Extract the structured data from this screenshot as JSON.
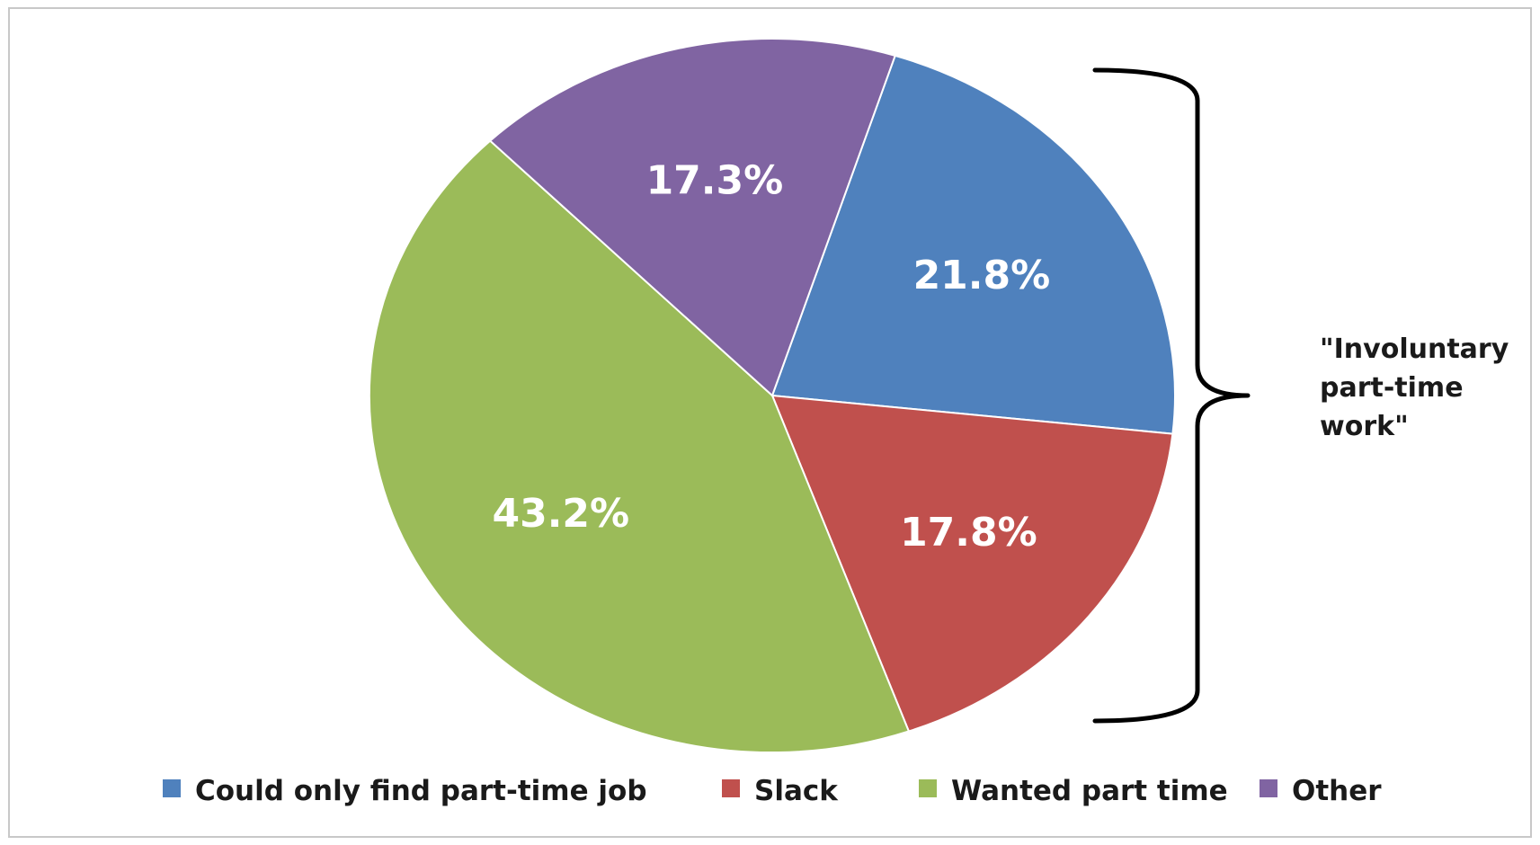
{
  "chart_data": {
    "type": "pie",
    "title": "",
    "slices": [
      {
        "name": "Could only find part-time job",
        "value": 21.8,
        "label": "21.8%",
        "color": "#4F81BD"
      },
      {
        "name": "Slack",
        "value": 17.8,
        "label": "17.8%",
        "color": "#C0504D"
      },
      {
        "name": "Wanted part time",
        "value": 43.2,
        "label": "43.2%",
        "color": "#9BBB59"
      },
      {
        "name": "Other",
        "value": 17.3,
        "label": "17.3%",
        "color": "#8064A2"
      }
    ],
    "legend": {
      "placement": "bottom",
      "entries": [
        "Could only find part-time job",
        "Slack",
        "Wanted part time",
        "Other"
      ]
    },
    "annotations": [
      {
        "type": "bracket",
        "text_lines": [
          "\"Involuntary",
          "part-time",
          "work\""
        ],
        "spans": [
          "Could only find part-time job",
          "Slack"
        ]
      }
    ]
  }
}
